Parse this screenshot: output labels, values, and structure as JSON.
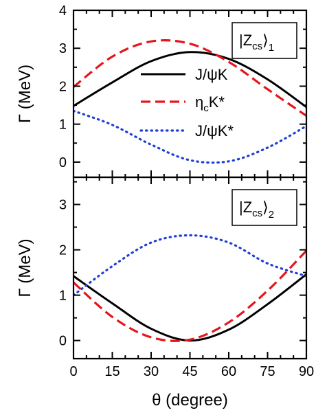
{
  "chart_data": [
    {
      "type": "line",
      "panel": "upper",
      "state_label": {
        "main": "|Z",
        "sub": "cs",
        "tail": "⟩",
        "index": "1"
      },
      "xlim": [
        0,
        90
      ],
      "ylim": [
        -0.4,
        4
      ],
      "yticks": [
        "0",
        "1",
        "2",
        "3",
        "4"
      ],
      "ylabel": "Γ (MeV)",
      "legend_position": "center",
      "series": [
        {
          "name": "J/ψK",
          "style": "solid",
          "color": "#000000",
          "x": [
            0,
            15,
            30,
            45,
            60,
            75,
            90
          ],
          "y": [
            1.48,
            2.1,
            2.66,
            2.9,
            2.72,
            2.18,
            1.45
          ]
        },
        {
          "name": "ηcK*",
          "style": "dashed",
          "color": "#e8141b",
          "x": [
            0,
            15,
            30,
            45,
            60,
            75,
            90
          ],
          "y": [
            1.98,
            2.78,
            3.18,
            3.12,
            2.64,
            1.92,
            1.22
          ]
        },
        {
          "name": "J/ψK*",
          "style": "dotted",
          "color": "#1f3fd6",
          "x": [
            0,
            15,
            30,
            45,
            60,
            75,
            90
          ],
          "y": [
            1.35,
            0.98,
            0.46,
            0.05,
            0.02,
            0.38,
            0.95
          ]
        }
      ]
    },
    {
      "type": "line",
      "panel": "lower",
      "state_label": {
        "main": "|Z",
        "sub": "cs",
        "tail": "⟩",
        "index": "2"
      },
      "xlim": [
        0,
        90
      ],
      "ylim": [
        -0.4,
        3.6
      ],
      "yticks": [
        "0",
        "1",
        "2",
        "3"
      ],
      "ylabel": "Γ (MeV)",
      "xlabel": "θ (degree)",
      "xticks": [
        "0",
        "15",
        "30",
        "45",
        "60",
        "75",
        "90"
      ],
      "series": [
        {
          "name": "J/ψK",
          "style": "solid",
          "color": "#000000",
          "x": [
            0,
            15,
            30,
            45,
            60,
            75,
            90
          ],
          "y": [
            1.42,
            0.82,
            0.26,
            0.0,
            0.24,
            0.8,
            1.46
          ]
        },
        {
          "name": "ηcK*",
          "style": "dashed",
          "color": "#e8141b",
          "x": [
            0,
            15,
            30,
            45,
            60,
            75,
            90
          ],
          "y": [
            1.28,
            0.52,
            0.07,
            0.02,
            0.4,
            1.1,
            1.98
          ]
        },
        {
          "name": "J/ψK*",
          "style": "dotted",
          "color": "#1f3fd6",
          "x": [
            0,
            15,
            30,
            45,
            60,
            75,
            90
          ],
          "y": [
            1.0,
            1.64,
            2.16,
            2.32,
            2.16,
            1.7,
            1.42
          ]
        }
      ]
    }
  ]
}
